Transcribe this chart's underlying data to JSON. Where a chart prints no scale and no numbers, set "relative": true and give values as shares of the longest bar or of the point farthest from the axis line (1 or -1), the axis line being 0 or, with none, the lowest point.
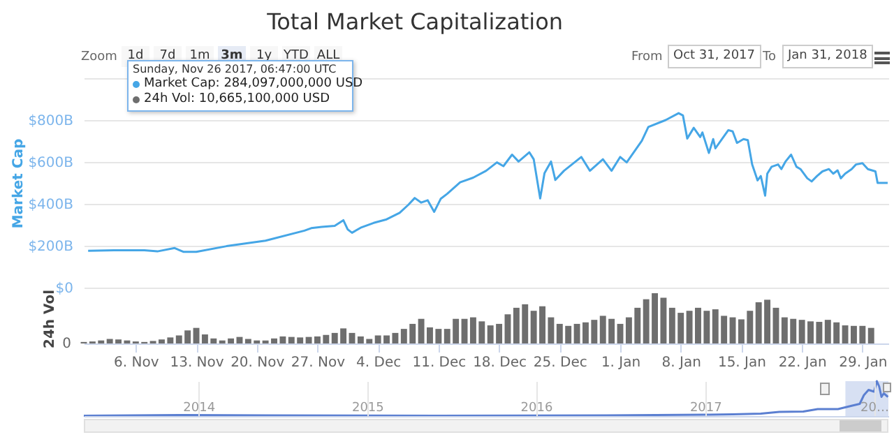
{
  "chart_data": [
    {
      "type": "line",
      "title": "Total Market Capitalization",
      "ylabel": "Market Cap",
      "grid": "y",
      "tick_labels": "y",
      "xlim": [
        "2017-10-31",
        "2018-02-01"
      ],
      "ylim": [
        0,
        1000
      ],
      "yticks": [
        {
          "value": 0,
          "label": "$0"
        },
        {
          "value": 200,
          "label": "$200B"
        },
        {
          "value": 400,
          "label": "$400B"
        },
        {
          "value": 600,
          "label": "$600B"
        },
        {
          "value": 800,
          "label": "$800B"
        },
        {
          "value": 1000,
          "label": null
        }
      ],
      "x": [
        "2017-10-31T12:00",
        "2017-11-03T12:00",
        "2017-11-07",
        "2017-11-08T12:00",
        "2017-11-10T12:00",
        "2017-11-11T12:00",
        "2017-11-13",
        "2017-11-16T12:00",
        "2017-11-21",
        "2017-11-25T12:00",
        "2017-11-26T06:47",
        "2017-11-27T12:00",
        "2017-11-29",
        "2017-11-30",
        "2017-11-30T12:00",
        "2017-12-01",
        "2017-12-02",
        "2017-12-03T12:00",
        "2017-12-05",
        "2017-12-06T12:00",
        "2017-12-07T12:00",
        "2017-12-08T06:00",
        "2017-12-09",
        "2017-12-09T18:00",
        "2017-12-10T12:00",
        "2017-12-11T06:00",
        "2017-12-12",
        "2017-12-13T12:00",
        "2017-12-15",
        "2017-12-16T12:00",
        "2017-12-17T18:00",
        "2017-12-18T12:00",
        "2017-12-19T12:00",
        "2017-12-20T06:00",
        "2017-12-21T12:00",
        "2017-12-22",
        "2017-12-22T18:00",
        "2017-12-23T06:00",
        "2017-12-24",
        "2017-12-24T12:00",
        "2017-12-25T12:00",
        "2017-12-27T12:00",
        "2017-12-28T12:00",
        "2017-12-30",
        "2017-12-31",
        "2018-01-01",
        "2018-01-01T18:00",
        "2018-01-03T12:00",
        "2018-01-04T06:00",
        "2018-01-06T06:00",
        "2018-01-07T18:00",
        "2018-01-08T06:00",
        "2018-01-08T18:00",
        "2018-01-09T12:00",
        "2018-01-10T06:00",
        "2018-01-10T12:00",
        "2018-01-11T06:00",
        "2018-01-11T18:00",
        "2018-01-12",
        "2018-01-12T18:00",
        "2018-01-13T12:00",
        "2018-01-14",
        "2018-01-14T12:00",
        "2018-01-15T06:00",
        "2018-01-15T18:00",
        "2018-01-16T06:00",
        "2018-01-16T21:00",
        "2018-01-17T06:00",
        "2018-01-17T18:00",
        "2018-01-18",
        "2018-01-18T12:00",
        "2018-01-19T06:00",
        "2018-01-19T15:00",
        "2018-01-20T03:00",
        "2018-01-20T18:00",
        "2018-01-21T09:00",
        "2018-01-21T20:00",
        "2018-01-22T15:00",
        "2018-01-23T03:00",
        "2018-01-23T18:00",
        "2018-01-24T09:00",
        "2018-01-25T03:00",
        "2018-01-25T15:00",
        "2018-01-26T03:00",
        "2018-01-26T12:00",
        "2018-01-27",
        "2018-01-27T18:00",
        "2018-01-28T06:00",
        "2018-01-29",
        "2018-01-29T15:00",
        "2018-01-30T12:00",
        "2018-01-30T18:00",
        "2018-01-31T22:00"
      ],
      "series": [
        {
          "color": "#45a6e6",
          "values": [
            176,
            178,
            178,
            173,
            189,
            171,
            171,
            198,
            224,
            272,
            284,
            290,
            295,
            322,
            278,
            262,
            286,
            309,
            326,
            357,
            395,
            428,
            406,
            417,
            362,
            424,
            448,
            503,
            525,
            558,
            598,
            580,
            635,
            602,
            646,
            613,
            426,
            547,
            602,
            514,
            558,
            624,
            558,
            613,
            558,
            624,
            598,
            701,
            767,
            800,
            833,
            822,
            712,
            763,
            719,
            741,
            643,
            709,
            665,
            709,
            752,
            746,
            691,
            709,
            704,
            588,
            512,
            533,
            439,
            544,
            577,
            588,
            566,
            603,
            635,
            577,
            566,
            522,
            507,
            533,
            555,
            566,
            544,
            560,
            522,
            544,
            566,
            588,
            594,
            566,
            555,
            500,
            500
          ]
        }
      ],
      "annotations": [
        "Zoom",
        "1d",
        "7d",
        "1m",
        "3m",
        "1y",
        "YTD",
        "ALL",
        "From",
        "Oct 31, 2017",
        "To",
        "Jan 31, 2018",
        "Sunday, Nov 26 2017, 06:47:00 UTC",
        "Market Cap: 284,097,000,000 USD",
        "24h Vol: 10,665,100,000 USD"
      ]
    },
    {
      "type": "bar",
      "ylabel": "24h Vol",
      "relative": true,
      "tick_labels": "x",
      "xlim": [
        "2017-10-31",
        "2018-02-01"
      ],
      "xticks": [
        {
          "value": "2017-11-06",
          "label": "6. Nov"
        },
        {
          "value": "2017-11-13",
          "label": "13. Nov"
        },
        {
          "value": "2017-11-20",
          "label": "20. Nov"
        },
        {
          "value": "2017-11-27",
          "label": "27. Nov"
        },
        {
          "value": "2017-12-04",
          "label": "4. Dec"
        },
        {
          "value": "2017-12-11",
          "label": "11. Dec"
        },
        {
          "value": "2017-12-18",
          "label": "18. Dec"
        },
        {
          "value": "2017-12-25",
          "label": "25. Dec"
        },
        {
          "value": "2018-01-01",
          "label": "1. Jan"
        },
        {
          "value": "2018-01-08",
          "label": "8. Jan"
        },
        {
          "value": "2018-01-15",
          "label": "15. Jan"
        },
        {
          "value": "2018-01-22",
          "label": "22. Jan"
        },
        {
          "value": "2018-01-29",
          "label": "29. Jan"
        }
      ],
      "x": [
        "2017-10-31",
        "2017-11-01",
        "2017-11-02",
        "2017-11-03",
        "2017-11-04",
        "2017-11-05",
        "2017-11-06",
        "2017-11-07",
        "2017-11-08",
        "2017-11-09",
        "2017-11-10",
        "2017-11-11",
        "2017-11-12",
        "2017-11-13",
        "2017-11-14",
        "2017-11-15",
        "2017-11-16",
        "2017-11-17",
        "2017-11-18",
        "2017-11-19",
        "2017-11-20",
        "2017-11-21",
        "2017-11-22",
        "2017-11-23",
        "2017-11-24",
        "2017-11-25",
        "2017-11-26",
        "2017-11-27",
        "2017-11-28",
        "2017-11-29",
        "2017-11-30",
        "2017-12-01",
        "2017-12-02",
        "2017-12-03",
        "2017-12-04",
        "2017-12-05",
        "2017-12-06",
        "2017-12-07",
        "2017-12-08",
        "2017-12-09",
        "2017-12-10",
        "2017-12-11",
        "2017-12-12",
        "2017-12-13",
        "2017-12-14",
        "2017-12-15",
        "2017-12-16",
        "2017-12-17",
        "2017-12-18",
        "2017-12-19",
        "2017-12-20",
        "2017-12-21",
        "2017-12-22",
        "2017-12-23",
        "2017-12-24",
        "2017-12-25",
        "2017-12-26",
        "2017-12-27",
        "2017-12-28",
        "2017-12-29",
        "2017-12-30",
        "2017-12-31",
        "2018-01-01",
        "2018-01-02",
        "2018-01-03",
        "2018-01-04",
        "2018-01-05",
        "2018-01-06",
        "2018-01-07",
        "2018-01-08",
        "2018-01-09",
        "2018-01-10",
        "2018-01-11",
        "2018-01-12",
        "2018-01-13",
        "2018-01-14",
        "2018-01-15",
        "2018-01-16",
        "2018-01-17",
        "2018-01-18",
        "2018-01-19",
        "2018-01-20",
        "2018-01-21",
        "2018-01-22",
        "2018-01-23",
        "2018-01-24",
        "2018-01-25",
        "2018-01-26",
        "2018-01-27",
        "2018-01-28",
        "2018-01-29",
        "2018-01-30"
      ],
      "series": [
        {
          "color": "#6e6e6e",
          "values": [
            0.03,
            0.04,
            0.06,
            0.09,
            0.08,
            0.06,
            0.04,
            0.03,
            0.05,
            0.08,
            0.12,
            0.16,
            0.26,
            0.31,
            0.18,
            0.1,
            0.06,
            0.1,
            0.13,
            0.09,
            0.06,
            0.06,
            0.1,
            0.14,
            0.13,
            0.12,
            0.13,
            0.14,
            0.17,
            0.21,
            0.3,
            0.21,
            0.14,
            0.09,
            0.16,
            0.16,
            0.21,
            0.29,
            0.39,
            0.49,
            0.32,
            0.29,
            0.29,
            0.49,
            0.49,
            0.52,
            0.44,
            0.36,
            0.39,
            0.58,
            0.71,
            0.78,
            0.65,
            0.74,
            0.52,
            0.39,
            0.35,
            0.39,
            0.42,
            0.47,
            0.55,
            0.49,
            0.39,
            0.52,
            0.71,
            0.88,
            1,
            0.91,
            0.71,
            0.61,
            0.65,
            0.71,
            0.65,
            0.68,
            0.55,
            0.52,
            0.48,
            0.65,
            0.82,
            0.87,
            0.71,
            0.52,
            0.49,
            0.47,
            0.44,
            0.43,
            0.47,
            0.42,
            0.36,
            0.35,
            0.35,
            0.31
          ]
        }
      ],
      "annotations": [
        "0"
      ]
    },
    {
      "type": "line",
      "relative": true,
      "grid": "x",
      "tick_labels": "x",
      "xlim": [
        "2013-04-28",
        "2018-02-01"
      ],
      "xticks": [
        {
          "value": "2014-01-01",
          "label": "2014"
        },
        {
          "value": "2015-01-01",
          "label": "2015"
        },
        {
          "value": "2016-01-01",
          "label": "2016"
        },
        {
          "value": "2017-01-01",
          "label": "2017"
        },
        {
          "value": "2018-01-01",
          "label": "20…"
        }
      ],
      "x": [
        "2013-04-28",
        "2013-12-01",
        "2014-06-01",
        "2015-06-01",
        "2016-06-01",
        "2017-01-01",
        "2017-03-01",
        "2017-05-01",
        "2017-06-10",
        "2017-08-01",
        "2017-09-01",
        "2017-10-15",
        "2017-11-15",
        "2017-12-01",
        "2017-12-10",
        "2017-12-20",
        "2018-01-01",
        "2018-01-07",
        "2018-01-12",
        "2018-01-17",
        "2018-01-22",
        "2018-01-31"
      ],
      "series": [
        {
          "color": "#5b7fd1",
          "values": [
            0.01,
            0.03,
            0.02,
            0.01,
            0.02,
            0.04,
            0.05,
            0.07,
            0.12,
            0.13,
            0.2,
            0.2,
            0.3,
            0.35,
            0.6,
            0.75,
            0.7,
            1,
            0.85,
            0.55,
            0.65,
            0.55
          ]
        }
      ],
      "bands": [
        {
          "axis": "x",
          "from": "2017-10-31",
          "to": "2018-02-01",
          "color": "#cdd8f0"
        }
      ]
    }
  ]
}
